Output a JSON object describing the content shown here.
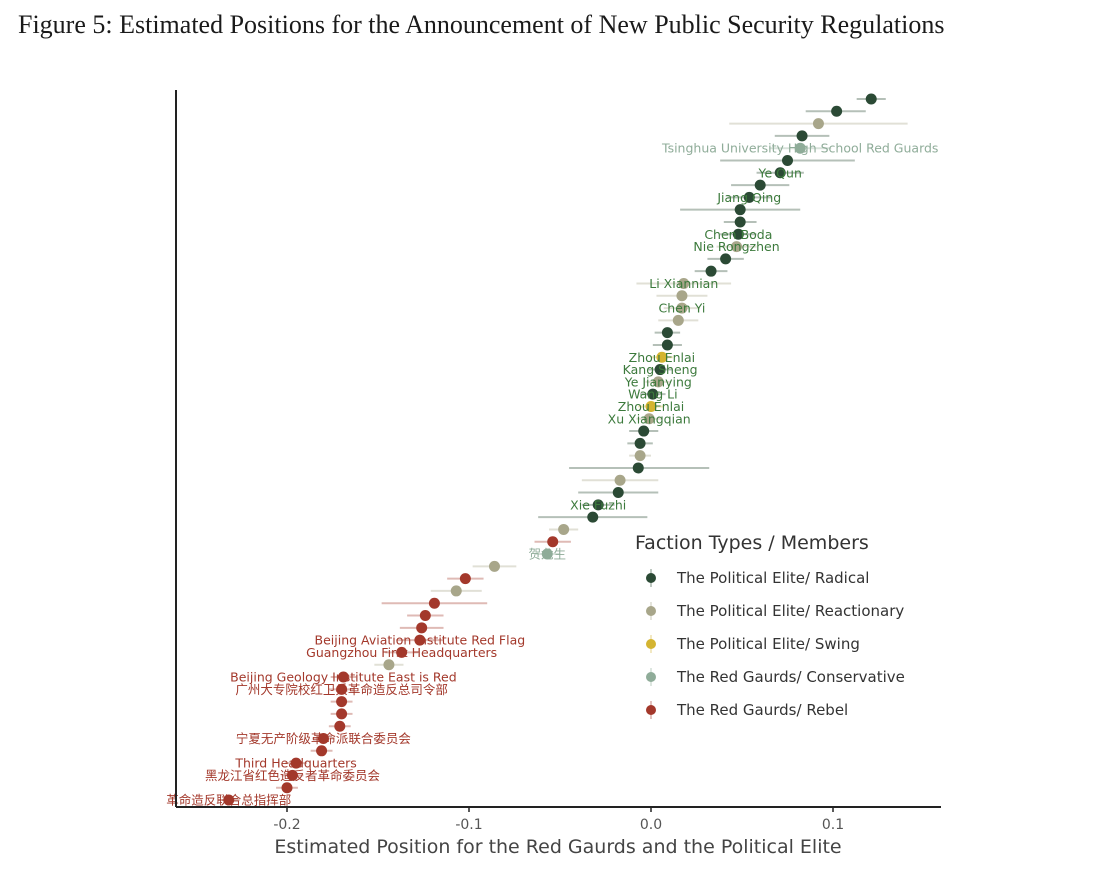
{
  "figure_title": "Figure 5: Estimated Positions for the Announcement of New Public Security Regulations",
  "chart_data": {
    "type": "scatter",
    "xlabel": "Estimated Position for the Red Gaurds and the Political Elite",
    "ylabel": "",
    "xlim": [
      -0.26,
      0.16
    ],
    "xticks": [
      -0.2,
      -0.1,
      0.0,
      0.1
    ],
    "xtick_labels": [
      "-0.2",
      "-0.1",
      "0.0",
      "0.1"
    ],
    "grid": false,
    "legend": {
      "title": "Faction Types / Members",
      "placement": "bottom-right",
      "entries": [
        {
          "group": "radical",
          "label": "The Political Elite/ Radical",
          "color": "#2b4a35"
        },
        {
          "group": "reactionary",
          "label": "The Political Elite/ Reactionary",
          "color": "#a8a68a"
        },
        {
          "group": "swing",
          "label": "The Political Elite/ Swing",
          "color": "#d4b431"
        },
        {
          "group": "conservative",
          "label": "The Red Gaurds/ Conservative",
          "color": "#8fac99"
        },
        {
          "group": "rebel",
          "label": "The Red Gaurds/ Rebel",
          "color": "#a3382b"
        }
      ]
    },
    "points": [
      {
        "x": 0.121,
        "lo": 0.113,
        "hi": 0.129,
        "group": "radical",
        "label": ""
      },
      {
        "x": 0.102,
        "lo": 0.085,
        "hi": 0.118,
        "group": "radical",
        "label": ""
      },
      {
        "x": 0.092,
        "lo": 0.043,
        "hi": 0.141,
        "group": "reactionary",
        "label": ""
      },
      {
        "x": 0.083,
        "lo": 0.068,
        "hi": 0.098,
        "group": "radical",
        "label": ""
      },
      {
        "x": 0.082,
        "lo": 0.065,
        "hi": 0.099,
        "group": "conservative",
        "label": "Tsinghua University High School Red Guards"
      },
      {
        "x": 0.075,
        "lo": 0.038,
        "hi": 0.112,
        "group": "radical",
        "label": ""
      },
      {
        "x": 0.071,
        "lo": 0.058,
        "hi": 0.084,
        "group": "radical",
        "label": "Ye Qun"
      },
      {
        "x": 0.06,
        "lo": 0.044,
        "hi": 0.076,
        "group": "radical",
        "label": ""
      },
      {
        "x": 0.054,
        "lo": 0.042,
        "hi": 0.066,
        "group": "radical",
        "label": "Jiang Qing"
      },
      {
        "x": 0.049,
        "lo": 0.016,
        "hi": 0.082,
        "group": "radical",
        "label": ""
      },
      {
        "x": 0.049,
        "lo": 0.04,
        "hi": 0.058,
        "group": "radical",
        "label": ""
      },
      {
        "x": 0.048,
        "lo": 0.038,
        "hi": 0.058,
        "group": "radical",
        "label": "Chen Boda"
      },
      {
        "x": 0.047,
        "lo": 0.036,
        "hi": 0.058,
        "group": "reactionary",
        "label": "Nie Rongzhen"
      },
      {
        "x": 0.041,
        "lo": 0.031,
        "hi": 0.051,
        "group": "radical",
        "label": ""
      },
      {
        "x": 0.033,
        "lo": 0.024,
        "hi": 0.042,
        "group": "radical",
        "label": ""
      },
      {
        "x": 0.018,
        "lo": -0.008,
        "hi": 0.044,
        "group": "reactionary",
        "label": "Li Xiannian"
      },
      {
        "x": 0.017,
        "lo": 0.003,
        "hi": 0.031,
        "group": "reactionary",
        "label": ""
      },
      {
        "x": 0.017,
        "lo": 0.007,
        "hi": 0.027,
        "group": "reactionary",
        "label": "Chen Yi"
      },
      {
        "x": 0.015,
        "lo": 0.004,
        "hi": 0.026,
        "group": "reactionary",
        "label": ""
      },
      {
        "x": 0.009,
        "lo": 0.002,
        "hi": 0.016,
        "group": "radical",
        "label": ""
      },
      {
        "x": 0.009,
        "lo": 0.001,
        "hi": 0.017,
        "group": "radical",
        "label": ""
      },
      {
        "x": 0.006,
        "lo": 0.0,
        "hi": 0.012,
        "group": "swing",
        "label": "Zhou Enlai"
      },
      {
        "x": 0.005,
        "lo": -0.002,
        "hi": 0.012,
        "group": "radical",
        "label": "Kang Sheng"
      },
      {
        "x": 0.004,
        "lo": -0.003,
        "hi": 0.011,
        "group": "reactionary",
        "label": "Ye Jianying"
      },
      {
        "x": 0.001,
        "lo": -0.006,
        "hi": 0.008,
        "group": "radical",
        "label": "Wang Li"
      },
      {
        "x": 0.0,
        "lo": -0.007,
        "hi": 0.007,
        "group": "swing",
        "label": "Zhou Enlai"
      },
      {
        "x": -0.001,
        "lo": -0.008,
        "hi": 0.006,
        "group": "reactionary",
        "label": "Xu Xiangqian"
      },
      {
        "x": -0.004,
        "lo": -0.012,
        "hi": 0.004,
        "group": "radical",
        "label": ""
      },
      {
        "x": -0.006,
        "lo": -0.013,
        "hi": 0.001,
        "group": "radical",
        "label": ""
      },
      {
        "x": -0.006,
        "lo": -0.012,
        "hi": 0.0,
        "group": "reactionary",
        "label": ""
      },
      {
        "x": -0.007,
        "lo": -0.045,
        "hi": 0.032,
        "group": "radical",
        "label": ""
      },
      {
        "x": -0.017,
        "lo": -0.038,
        "hi": 0.004,
        "group": "reactionary",
        "label": ""
      },
      {
        "x": -0.018,
        "lo": -0.04,
        "hi": 0.004,
        "group": "radical",
        "label": ""
      },
      {
        "x": -0.029,
        "lo": -0.038,
        "hi": -0.02,
        "group": "radical",
        "label": "Xie Fuzhi"
      },
      {
        "x": -0.032,
        "lo": -0.062,
        "hi": -0.002,
        "group": "radical",
        "label": ""
      },
      {
        "x": -0.048,
        "lo": -0.056,
        "hi": -0.04,
        "group": "reactionary",
        "label": ""
      },
      {
        "x": -0.054,
        "lo": -0.064,
        "hi": -0.044,
        "group": "rebel",
        "label": ""
      },
      {
        "x": -0.057,
        "lo": -0.064,
        "hi": -0.05,
        "group": "conservative",
        "label": "贺龙生"
      },
      {
        "x": -0.086,
        "lo": -0.098,
        "hi": -0.074,
        "group": "reactionary",
        "label": ""
      },
      {
        "x": -0.102,
        "lo": -0.112,
        "hi": -0.092,
        "group": "rebel",
        "label": ""
      },
      {
        "x": -0.107,
        "lo": -0.121,
        "hi": -0.093,
        "group": "reactionary",
        "label": ""
      },
      {
        "x": -0.119,
        "lo": -0.148,
        "hi": -0.09,
        "group": "rebel",
        "label": ""
      },
      {
        "x": -0.124,
        "lo": -0.134,
        "hi": -0.114,
        "group": "rebel",
        "label": ""
      },
      {
        "x": -0.126,
        "lo": -0.138,
        "hi": -0.114,
        "group": "rebel",
        "label": ""
      },
      {
        "x": -0.127,
        "lo": -0.14,
        "hi": -0.114,
        "group": "rebel",
        "label": "Beijing Aviation Institute Red Flag"
      },
      {
        "x": -0.137,
        "lo": -0.146,
        "hi": -0.128,
        "group": "rebel",
        "label": "Guangzhou  First Headquarters"
      },
      {
        "x": -0.144,
        "lo": -0.152,
        "hi": -0.136,
        "group": "reactionary",
        "label": ""
      },
      {
        "x": -0.169,
        "lo": -0.176,
        "hi": -0.162,
        "group": "rebel",
        "label": "Beijing Geology Institute East is Red"
      },
      {
        "x": -0.17,
        "lo": -0.177,
        "hi": -0.163,
        "group": "rebel",
        "label": "广州大专院校红卫兵革命造反总司令部"
      },
      {
        "x": -0.17,
        "lo": -0.176,
        "hi": -0.164,
        "group": "rebel",
        "label": ""
      },
      {
        "x": -0.17,
        "lo": -0.176,
        "hi": -0.164,
        "group": "rebel",
        "label": ""
      },
      {
        "x": -0.171,
        "lo": -0.177,
        "hi": -0.165,
        "group": "rebel",
        "label": ""
      },
      {
        "x": -0.18,
        "lo": -0.186,
        "hi": -0.174,
        "group": "rebel",
        "label": "宁夏无产阶级革命派联合委员会"
      },
      {
        "x": -0.181,
        "lo": -0.187,
        "hi": -0.175,
        "group": "rebel",
        "label": ""
      },
      {
        "x": -0.195,
        "lo": -0.201,
        "hi": -0.189,
        "group": "rebel",
        "label": "Third Headquarters"
      },
      {
        "x": -0.197,
        "lo": -0.203,
        "hi": -0.191,
        "group": "rebel",
        "label": "黑龙江省红色造反者革命委员会"
      },
      {
        "x": -0.2,
        "lo": -0.206,
        "hi": -0.194,
        "group": "rebel",
        "label": ""
      },
      {
        "x": -0.232,
        "lo": -0.238,
        "hi": -0.226,
        "group": "rebel",
        "label": "革命造反联合总指挥部"
      }
    ]
  }
}
